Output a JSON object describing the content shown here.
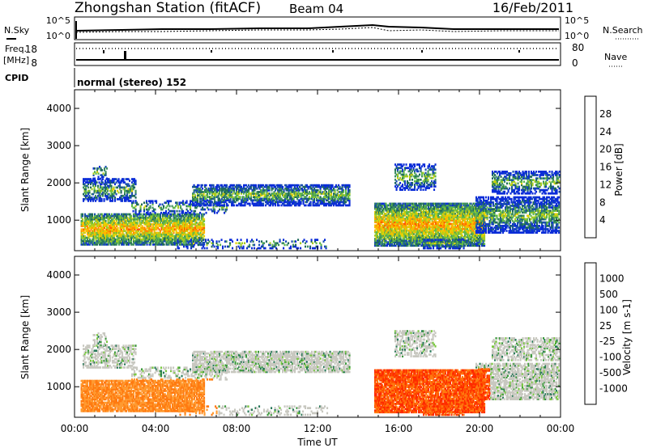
{
  "header": {
    "title": "Zhongshan Station (fitACF)",
    "beam": "Beam 04",
    "date": "16/Feb/2011"
  },
  "strip": {
    "nsky_label": "N.Sky",
    "nsearch_label": "N.Search",
    "freq_label": "Freq.",
    "freq_unit": "[MHz]",
    "nave_label": "Nave",
    "cpid_label": "CPID",
    "cpid_value": "normal (stereo) 152",
    "noise_ticks_left": [
      "10^5",
      "10^0"
    ],
    "noise_ticks_right": [
      "10^5",
      "10^0"
    ],
    "freq_ticks": [
      "18",
      "8"
    ],
    "nave_ticks": [
      "80",
      "0"
    ]
  },
  "chart_data": [
    {
      "type": "heatmap",
      "name": "power-panel",
      "ylabel": "Slant Range [km]",
      "xlabel": "",
      "ylim": [
        180,
        4500
      ],
      "yticks": [
        "1000",
        "2000",
        "3000",
        "4000"
      ],
      "xlim": [
        0,
        24
      ],
      "colorbar": {
        "label": "Power [dB]",
        "ticks": [
          "28",
          "24",
          "20",
          "16",
          "12",
          "8",
          "4"
        ],
        "colors": [
          "#dd0000",
          "#ff2a00",
          "#ff5a00",
          "#ff8a00",
          "#ffb400",
          "#e8d000",
          "#a8cc20",
          "#5fb84a",
          "#3f8f60",
          "#1f6a5a",
          "#1a4fb0",
          "#0a2cd8"
        ]
      }
    },
    {
      "type": "heatmap",
      "name": "velocity-panel",
      "ylabel": "Slant Range [km]",
      "xlabel": "Time UT",
      "ylim": [
        180,
        4500
      ],
      "yticks": [
        "1000",
        "2000",
        "3000",
        "4000"
      ],
      "xlim": [
        0,
        24
      ],
      "xticks": [
        "00:00",
        "04:00",
        "08:00",
        "12:00",
        "16:00",
        "20:00",
        "00:00"
      ],
      "colorbar": {
        "label": "Velocity [m s-1]",
        "ticks": [
          "1000",
          "500",
          "100",
          "25",
          "-25",
          "-100",
          "-500",
          "-1000"
        ],
        "colors": [
          "#1230c8",
          "#2a58b0",
          "#2a7a5a",
          "#3c9a3c",
          "#7ac840",
          "#c8c8c0",
          "#ff9a30",
          "#ff7a10",
          "#ff5000",
          "#ff2a00",
          "#e00000"
        ]
      }
    }
  ]
}
